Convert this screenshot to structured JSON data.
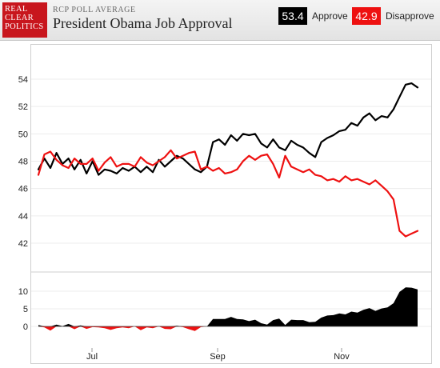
{
  "header": {
    "logo_lines": [
      "REAL",
      "CLEAR",
      "POLITICS"
    ],
    "kicker": "RCP POLL AVERAGE",
    "title": "President Obama Job Approval"
  },
  "legend": [
    {
      "value": "53.4",
      "label": "Approve",
      "color": "#000000"
    },
    {
      "value": "42.9",
      "label": "Disapprove",
      "color": "#ee1111"
    }
  ],
  "chart_data": [
    {
      "type": "line",
      "title": "",
      "ylim": [
        41,
        55.5
      ],
      "y_ticks": [
        "42",
        "44",
        "46",
        "48",
        "50",
        "52",
        "54"
      ],
      "x_ticks": [
        "Jul",
        "Sep",
        "Nov"
      ],
      "grid": true,
      "series": [
        {
          "name": "Approve",
          "color": "#000000",
          "values": [
            47.4,
            48.2,
            47.5,
            48.6,
            47.8,
            48.2,
            47.4,
            48.1,
            47.1,
            48.0,
            47.0,
            47.4,
            47.3,
            47.1,
            47.5,
            47.3,
            47.6,
            47.2,
            47.6,
            47.2,
            48.1,
            47.6,
            48.0,
            48.4,
            48.2,
            47.8,
            47.4,
            47.2,
            47.6,
            49.4,
            49.6,
            49.2,
            49.9,
            49.5,
            50.0,
            49.9,
            50.0,
            49.3,
            49.0,
            49.6,
            49.0,
            48.8,
            49.5,
            49.2,
            49.0,
            48.6,
            48.3,
            49.4,
            49.7,
            49.9,
            50.2,
            50.3,
            50.8,
            50.6,
            51.2,
            51.5,
            51.0,
            51.3,
            51.2,
            51.8,
            52.7,
            53.6,
            53.7,
            53.4
          ]
        },
        {
          "name": "Disapprove",
          "color": "#ee1111",
          "values": [
            47.0,
            48.5,
            48.7,
            48.1,
            47.7,
            47.5,
            48.2,
            47.8,
            47.8,
            48.2,
            47.3,
            47.9,
            48.3,
            47.6,
            47.8,
            47.8,
            47.6,
            48.3,
            47.9,
            47.7,
            48.0,
            48.3,
            48.8,
            48.2,
            48.4,
            48.6,
            48.7,
            47.4,
            47.6,
            47.3,
            47.5,
            47.1,
            47.2,
            47.4,
            48.0,
            48.4,
            48.1,
            48.4,
            48.5,
            47.8,
            46.8,
            48.4,
            47.6,
            47.4,
            47.2,
            47.4,
            47.0,
            46.9,
            46.6,
            46.7,
            46.5,
            46.9,
            46.6,
            46.7,
            46.5,
            46.3,
            46.6,
            46.2,
            45.8,
            45.2,
            42.9,
            42.5,
            42.7,
            42.9
          ]
        }
      ]
    },
    {
      "type": "area",
      "title": "",
      "ylim": [
        -2,
        12
      ],
      "y_ticks": [
        "0",
        "5",
        "10"
      ],
      "x_ticks": [
        "Jul",
        "Sep",
        "Nov"
      ],
      "series": [
        {
          "name": "",
          "positive_color": "#000000",
          "negative_color": "#ee1111",
          "values": [
            0.4,
            -0.3,
            -1.2,
            0.5,
            0.1,
            0.7,
            -0.8,
            0.3,
            -0.7,
            -0.2,
            -0.3,
            -0.5,
            -1.0,
            -0.5,
            -0.3,
            -0.5,
            0.0,
            -1.1,
            -0.3,
            -0.5,
            0.1,
            -0.7,
            -0.8,
            0.2,
            -0.2,
            -0.8,
            -1.3,
            -0.2,
            0.0,
            2.1,
            2.1,
            2.1,
            2.7,
            2.1,
            2.0,
            1.5,
            1.9,
            0.9,
            0.5,
            1.8,
            2.2,
            0.4,
            1.9,
            1.8,
            1.8,
            1.2,
            1.3,
            2.5,
            3.1,
            3.2,
            3.7,
            3.4,
            4.2,
            3.9,
            4.7,
            5.2,
            4.4,
            5.1,
            5.4,
            6.6,
            9.8,
            11.1,
            11.0,
            10.5
          ]
        }
      ]
    }
  ]
}
